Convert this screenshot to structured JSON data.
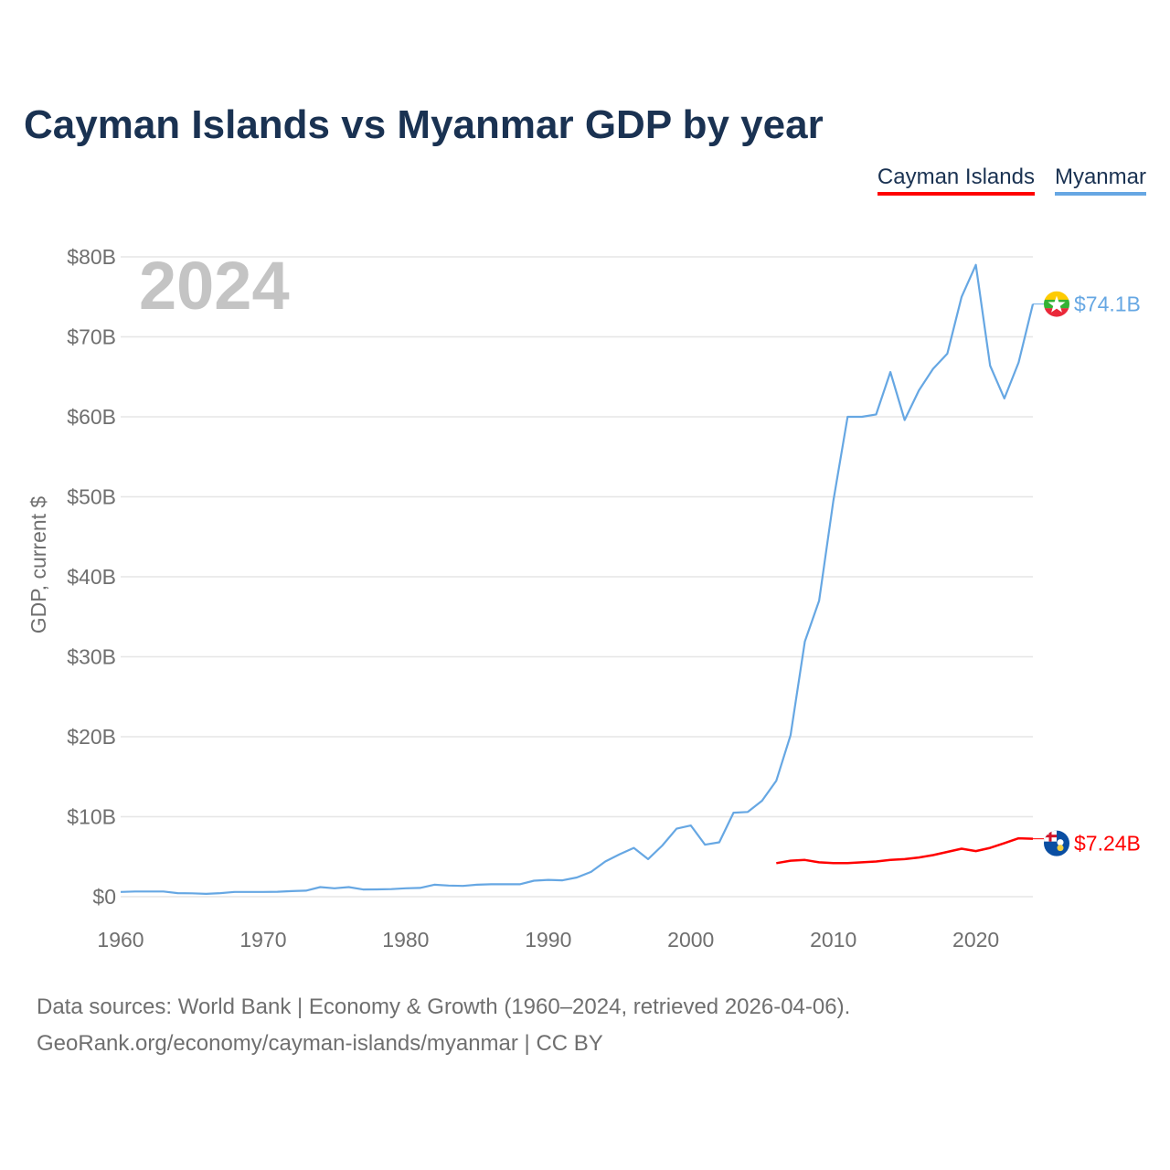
{
  "chart_data": {
    "type": "line",
    "title": "Cayman Islands vs Myanmar GDP by year",
    "ylabel": "GDP, current $",
    "xlabel": "",
    "xlim": [
      1960,
      2024
    ],
    "ylim": [
      0,
      80
    ],
    "y_ticks": [
      0,
      10,
      20,
      30,
      40,
      50,
      60,
      70,
      80
    ],
    "y_tick_labels": [
      "$0",
      "$10B",
      "$20B",
      "$30B",
      "$40B",
      "$50B",
      "$60B",
      "$70B",
      "$80B"
    ],
    "x_ticks": [
      1960,
      1970,
      1980,
      1990,
      2000,
      2010,
      2020
    ],
    "x_tick_labels": [
      "1960",
      "1970",
      "1980",
      "1990",
      "2000",
      "2010",
      "2020"
    ],
    "year_label": "2024",
    "grid": true,
    "legend_position": "top-right",
    "series": [
      {
        "name": "Cayman Islands",
        "color": "#ff0000",
        "end_label": "$7.24B",
        "flag_icon": "cayman-islands-flag-icon",
        "x": [
          2006,
          2007,
          2008,
          2009,
          2010,
          2011,
          2012,
          2013,
          2014,
          2015,
          2016,
          2017,
          2018,
          2019,
          2020,
          2021,
          2022,
          2023,
          2024
        ],
        "values": [
          4.2,
          4.5,
          4.6,
          4.3,
          4.2,
          4.2,
          4.3,
          4.4,
          4.6,
          4.7,
          4.9,
          5.2,
          5.6,
          6.0,
          5.7,
          6.1,
          6.7,
          7.3,
          7.24
        ]
      },
      {
        "name": "Myanmar",
        "color": "#66a7e3",
        "end_label": "$74.1B",
        "flag_icon": "myanmar-flag-icon",
        "x": [
          1960,
          1961,
          1962,
          1963,
          1964,
          1965,
          1966,
          1967,
          1968,
          1969,
          1970,
          1971,
          1972,
          1973,
          1974,
          1975,
          1976,
          1977,
          1978,
          1979,
          1980,
          1981,
          1982,
          1983,
          1984,
          1985,
          1986,
          1987,
          1988,
          1989,
          1990,
          1991,
          1992,
          1993,
          1994,
          1995,
          1996,
          1997,
          1998,
          1999,
          2000,
          2001,
          2002,
          2003,
          2004,
          2005,
          2006,
          2007,
          2008,
          2009,
          2010,
          2011,
          2012,
          2013,
          2014,
          2015,
          2016,
          2017,
          2018,
          2019,
          2020,
          2021,
          2022,
          2023,
          2024
        ],
        "values": [
          0.6,
          0.65,
          0.65,
          0.65,
          0.45,
          0.42,
          0.35,
          0.45,
          0.6,
          0.6,
          0.6,
          0.62,
          0.7,
          0.75,
          1.2,
          1.05,
          1.2,
          0.9,
          0.92,
          0.95,
          1.05,
          1.1,
          1.5,
          1.4,
          1.35,
          1.5,
          1.55,
          1.55,
          1.55,
          2.0,
          2.1,
          2.05,
          2.4,
          3.1,
          4.4,
          5.3,
          6.1,
          4.7,
          6.4,
          8.5,
          8.9,
          6.5,
          6.8,
          10.5,
          10.6,
          12.0,
          14.5,
          20.2,
          31.9,
          37.0,
          49.5,
          60.0,
          60.0,
          60.3,
          65.6,
          59.6,
          63.3,
          66.0,
          67.9,
          75.0,
          79.0,
          66.4,
          62.3,
          66.8,
          74.1
        ]
      }
    ]
  },
  "footer": {
    "line1": "Data sources: World Bank | Economy & Growth (1960–2024, retrieved 2026-04-06).",
    "link_text": "GeoRank.org/economy/cayman-islands/myanmar",
    "license": " | CC BY"
  }
}
